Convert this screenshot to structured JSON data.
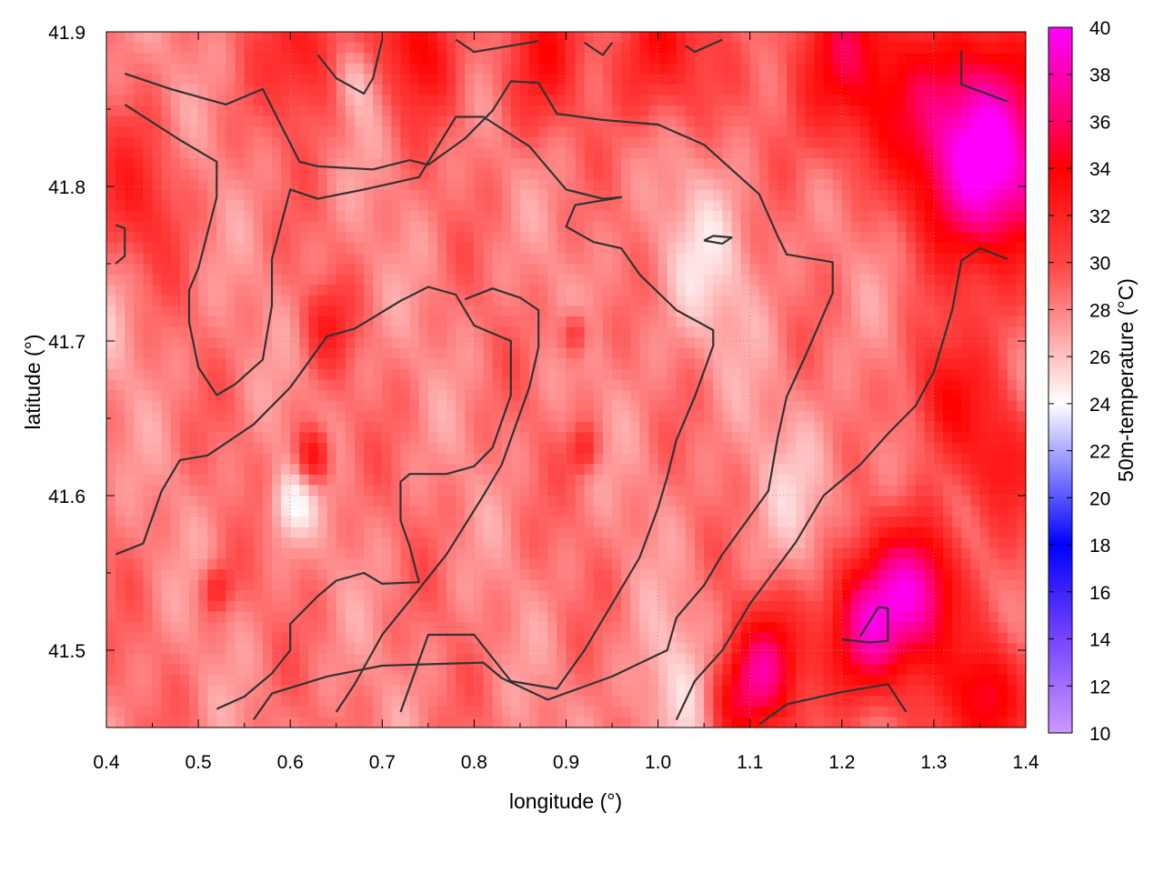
{
  "chart_data": {
    "type": "heatmap",
    "xlabel": "longitude (°)",
    "ylabel": "latitude (°)",
    "colorbar_label": "50m-temperature (°C)",
    "xlim": [
      0.4,
      1.4
    ],
    "ylim": [
      41.45,
      41.9
    ],
    "x_ticks": [
      0.4,
      0.5,
      0.6,
      0.7,
      0.8,
      0.9,
      1.0,
      1.1,
      1.2,
      1.3,
      1.4
    ],
    "x_tick_labels": [
      "0.4",
      "0.5",
      "0.6",
      "0.7",
      "0.8",
      "0.9",
      "1.0",
      "1.1",
      "1.2",
      "1.3",
      "1.4"
    ],
    "y_ticks": [
      41.5,
      41.6,
      41.7,
      41.8,
      41.9
    ],
    "y_tick_labels": [
      "41.5",
      "41.6",
      "41.7",
      "41.8",
      "41.9"
    ],
    "colorbar_range": [
      10,
      40
    ],
    "colorbar_ticks": [
      10,
      12,
      14,
      16,
      18,
      20,
      22,
      24,
      26,
      28,
      30,
      32,
      34,
      36,
      38,
      40
    ],
    "colorbar_tick_labels": [
      "10",
      "12",
      "14",
      "16",
      "18",
      "20",
      "22",
      "24",
      "26",
      "28",
      "30",
      "32",
      "34",
      "36",
      "38",
      "40"
    ],
    "colorscale": [
      {
        "t": 10,
        "color": "#cc99ff"
      },
      {
        "t": 14,
        "color": "#7744ff"
      },
      {
        "t": 18,
        "color": "#0000ff"
      },
      {
        "t": 24,
        "color": "#ffffff"
      },
      {
        "t": 30,
        "color": "#ff4444"
      },
      {
        "t": 34,
        "color": "#ff0000"
      },
      {
        "t": 36,
        "color": "#ff0066"
      },
      {
        "t": 40,
        "color": "#ff00ff"
      }
    ],
    "grid": true,
    "field": {
      "base_temperature": 28.2,
      "hot_spots": [
        {
          "lon": 1.225,
          "lat": 41.515,
          "temp": 37.5,
          "r": 0.05
        },
        {
          "lon": 1.29,
          "lat": 41.54,
          "temp": 36.5,
          "r": 0.045
        },
        {
          "lon": 1.12,
          "lat": 41.49,
          "temp": 35.0,
          "r": 0.04
        },
        {
          "lon": 1.08,
          "lat": 41.465,
          "temp": 33.0,
          "r": 0.035
        },
        {
          "lon": 1.36,
          "lat": 41.47,
          "temp": 36.0,
          "r": 0.04
        },
        {
          "lon": 1.33,
          "lat": 41.84,
          "temp": 37.5,
          "r": 0.07
        },
        {
          "lon": 1.38,
          "lat": 41.8,
          "temp": 36.0,
          "r": 0.06
        },
        {
          "lon": 1.2,
          "lat": 41.88,
          "temp": 34.5,
          "r": 0.06
        },
        {
          "lon": 1.0,
          "lat": 41.89,
          "temp": 33.5,
          "r": 0.05
        },
        {
          "lon": 0.88,
          "lat": 41.88,
          "temp": 34.5,
          "r": 0.05
        },
        {
          "lon": 0.74,
          "lat": 41.89,
          "temp": 33.5,
          "r": 0.04
        },
        {
          "lon": 0.62,
          "lat": 41.89,
          "temp": 33.0,
          "r": 0.045
        },
        {
          "lon": 0.43,
          "lat": 41.79,
          "temp": 31.5,
          "r": 0.05
        },
        {
          "lon": 1.31,
          "lat": 41.665,
          "temp": 33.5,
          "r": 0.04
        },
        {
          "lon": 1.37,
          "lat": 41.62,
          "temp": 32.5,
          "r": 0.04
        },
        {
          "lon": 0.625,
          "lat": 41.625,
          "temp": 34.0,
          "r": 0.018
        },
        {
          "lon": 0.52,
          "lat": 41.54,
          "temp": 32.0,
          "r": 0.015
        },
        {
          "lon": 0.64,
          "lat": 41.71,
          "temp": 31.5,
          "r": 0.025
        },
        {
          "lon": 0.91,
          "lat": 41.705,
          "temp": 32.0,
          "r": 0.015
        },
        {
          "lon": 0.92,
          "lat": 41.63,
          "temp": 32.0,
          "r": 0.015
        }
      ],
      "cool_spots": [
        {
          "lon": 0.6,
          "lat": 41.595,
          "temp": 24.5,
          "r": 0.025
        },
        {
          "lon": 0.9,
          "lat": 41.87,
          "temp": 25.5,
          "r": 0.05
        },
        {
          "lon": 1.05,
          "lat": 41.75,
          "temp": 25.8,
          "r": 0.06
        },
        {
          "lon": 1.02,
          "lat": 41.47,
          "temp": 25.5,
          "r": 0.05
        },
        {
          "lon": 1.16,
          "lat": 41.6,
          "temp": 26.5,
          "r": 0.06
        },
        {
          "lon": 0.67,
          "lat": 41.87,
          "temp": 25.2,
          "r": 0.025
        },
        {
          "lon": 0.4,
          "lat": 41.72,
          "temp": 27.0,
          "r": 0.05
        }
      ]
    },
    "contours": [
      [
        [
          0.42,
          41.873
        ],
        [
          0.47,
          41.863
        ],
        [
          0.53,
          41.853
        ],
        [
          0.55,
          41.858
        ],
        [
          0.57,
          41.863
        ],
        [
          0.61,
          41.816
        ],
        [
          0.63,
          41.813
        ],
        [
          0.69,
          41.811
        ],
        [
          0.73,
          41.817
        ],
        [
          0.75,
          41.814
        ],
        [
          0.79,
          41.831
        ],
        [
          0.82,
          41.849
        ],
        [
          0.84,
          41.868
        ],
        [
          0.87,
          41.867
        ],
        [
          0.89,
          41.847
        ],
        [
          0.94,
          41.843
        ],
        [
          1.0,
          41.84
        ],
        [
          1.05,
          41.827
        ],
        [
          1.08,
          41.811
        ],
        [
          1.11,
          41.795
        ],
        [
          1.13,
          41.768
        ],
        [
          1.14,
          41.756
        ],
        [
          1.19,
          41.751
        ],
        [
          1.19,
          41.731
        ],
        [
          1.16,
          41.69
        ],
        [
          1.14,
          41.664
        ],
        [
          1.13,
          41.637
        ],
        [
          1.12,
          41.603
        ],
        [
          1.07,
          41.562
        ],
        [
          1.05,
          41.542
        ],
        [
          1.02,
          41.521
        ],
        [
          1.01,
          41.5
        ],
        [
          0.95,
          41.483
        ],
        [
          0.88,
          41.468
        ],
        [
          0.83,
          41.482
        ],
        [
          0.81,
          41.492
        ],
        [
          0.7,
          41.49
        ],
        [
          0.64,
          41.483
        ],
        [
          0.58,
          41.472
        ],
        [
          0.56,
          41.455
        ]
      ],
      [
        [
          0.42,
          41.853
        ],
        [
          0.48,
          41.83
        ],
        [
          0.52,
          41.816
        ],
        [
          0.52,
          41.793
        ],
        [
          0.5,
          41.747
        ],
        [
          0.49,
          41.733
        ],
        [
          0.49,
          41.712
        ],
        [
          0.5,
          41.683
        ],
        [
          0.52,
          41.665
        ],
        [
          0.54,
          41.672
        ],
        [
          0.57,
          41.688
        ],
        [
          0.58,
          41.723
        ],
        [
          0.58,
          41.753
        ],
        [
          0.6,
          41.798
        ],
        [
          0.63,
          41.792
        ],
        [
          0.68,
          41.798
        ],
        [
          0.74,
          41.806
        ],
        [
          0.78,
          41.845
        ],
        [
          0.81,
          41.845
        ],
        [
          0.86,
          41.826
        ],
        [
          0.9,
          41.798
        ],
        [
          0.94,
          41.792
        ],
        [
          0.96,
          41.793
        ],
        [
          0.91,
          41.788
        ],
        [
          0.9,
          41.774
        ],
        [
          0.93,
          41.764
        ],
        [
          0.96,
          41.76
        ],
        [
          0.98,
          41.743
        ],
        [
          1.02,
          41.72
        ],
        [
          1.06,
          41.707
        ],
        [
          1.06,
          41.697
        ],
        [
          1.04,
          41.664
        ],
        [
          1.02,
          41.636
        ],
        [
          1.01,
          41.612
        ],
        [
          1.0,
          41.592
        ],
        [
          0.98,
          41.56
        ],
        [
          0.95,
          41.53
        ],
        [
          0.92,
          41.5
        ],
        [
          0.89,
          41.475
        ],
        [
          0.84,
          41.48
        ],
        [
          0.8,
          41.51
        ],
        [
          0.75,
          41.51
        ],
        [
          0.72,
          41.46
        ]
      ],
      [
        [
          0.41,
          41.562
        ],
        [
          0.44,
          41.569
        ],
        [
          0.46,
          41.603
        ],
        [
          0.48,
          41.623
        ],
        [
          0.51,
          41.626
        ],
        [
          0.56,
          41.646
        ],
        [
          0.6,
          41.67
        ],
        [
          0.64,
          41.703
        ],
        [
          0.67,
          41.708
        ],
        [
          0.72,
          41.726
        ],
        [
          0.75,
          41.735
        ],
        [
          0.78,
          41.73
        ],
        [
          0.8,
          41.71
        ],
        [
          0.84,
          41.7
        ],
        [
          0.84,
          41.665
        ],
        [
          0.82,
          41.631
        ],
        [
          0.8,
          41.619
        ],
        [
          0.77,
          41.614
        ],
        [
          0.73,
          41.614
        ],
        [
          0.72,
          41.609
        ],
        [
          0.72,
          41.584
        ],
        [
          0.73,
          41.567
        ],
        [
          0.74,
          41.544
        ],
        [
          0.7,
          41.543
        ],
        [
          0.68,
          41.55
        ],
        [
          0.65,
          41.545
        ],
        [
          0.63,
          41.535
        ],
        [
          0.6,
          41.517
        ],
        [
          0.6,
          41.5
        ],
        [
          0.58,
          41.485
        ],
        [
          0.55,
          41.47
        ],
        [
          0.52,
          41.462
        ]
      ],
      [
        [
          0.65,
          41.46
        ],
        [
          0.67,
          41.478
        ],
        [
          0.7,
          41.51
        ],
        [
          0.73,
          41.532
        ],
        [
          0.77,
          41.562
        ],
        [
          0.81,
          41.6
        ],
        [
          0.83,
          41.62
        ],
        [
          0.86,
          41.67
        ],
        [
          0.87,
          41.696
        ],
        [
          0.87,
          41.72
        ],
        [
          0.85,
          41.728
        ],
        [
          0.82,
          41.734
        ],
        [
          0.79,
          41.727
        ]
      ],
      [
        [
          1.02,
          41.455
        ],
        [
          1.04,
          41.48
        ],
        [
          1.07,
          41.5
        ],
        [
          1.1,
          41.53
        ],
        [
          1.15,
          41.57
        ],
        [
          1.18,
          41.6
        ],
        [
          1.22,
          41.62
        ],
        [
          1.25,
          41.64
        ],
        [
          1.28,
          41.658
        ],
        [
          1.3,
          41.68
        ],
        [
          1.32,
          41.72
        ],
        [
          1.33,
          41.752
        ],
        [
          1.35,
          41.76
        ],
        [
          1.38,
          41.753
        ]
      ],
      [
        [
          1.2,
          41.507
        ],
        [
          1.23,
          41.505
        ],
        [
          1.25,
          41.506
        ],
        [
          1.25,
          41.527
        ],
        [
          1.24,
          41.528
        ],
        [
          1.22,
          41.509
        ]
      ],
      [
        [
          1.11,
          41.452
        ],
        [
          1.14,
          41.465
        ],
        [
          1.2,
          41.473
        ],
        [
          1.25,
          41.478
        ],
        [
          1.27,
          41.46
        ]
      ],
      [
        [
          0.41,
          41.775
        ],
        [
          0.42,
          41.773
        ],
        [
          0.42,
          41.755
        ],
        [
          0.41,
          41.75
        ]
      ],
      [
        [
          0.63,
          41.885
        ],
        [
          0.65,
          41.87
        ],
        [
          0.68,
          41.86
        ],
        [
          0.69,
          41.87
        ],
        [
          0.7,
          41.895
        ]
      ],
      [
        [
          0.78,
          41.895
        ],
        [
          0.8,
          41.887
        ],
        [
          0.84,
          41.891
        ],
        [
          0.87,
          41.894
        ]
      ],
      [
        [
          0.92,
          41.893
        ],
        [
          0.94,
          41.885
        ],
        [
          0.95,
          41.893
        ]
      ],
      [
        [
          1.03,
          41.891
        ],
        [
          1.04,
          41.887
        ],
        [
          1.07,
          41.895
        ]
      ],
      [
        [
          1.05,
          41.765
        ],
        [
          1.07,
          41.763
        ],
        [
          1.08,
          41.767
        ],
        [
          1.06,
          41.768
        ],
        [
          1.05,
          41.765
        ]
      ],
      [
        [
          1.33,
          41.888
        ],
        [
          1.33,
          41.866
        ],
        [
          1.38,
          41.855
        ]
      ]
    ]
  }
}
